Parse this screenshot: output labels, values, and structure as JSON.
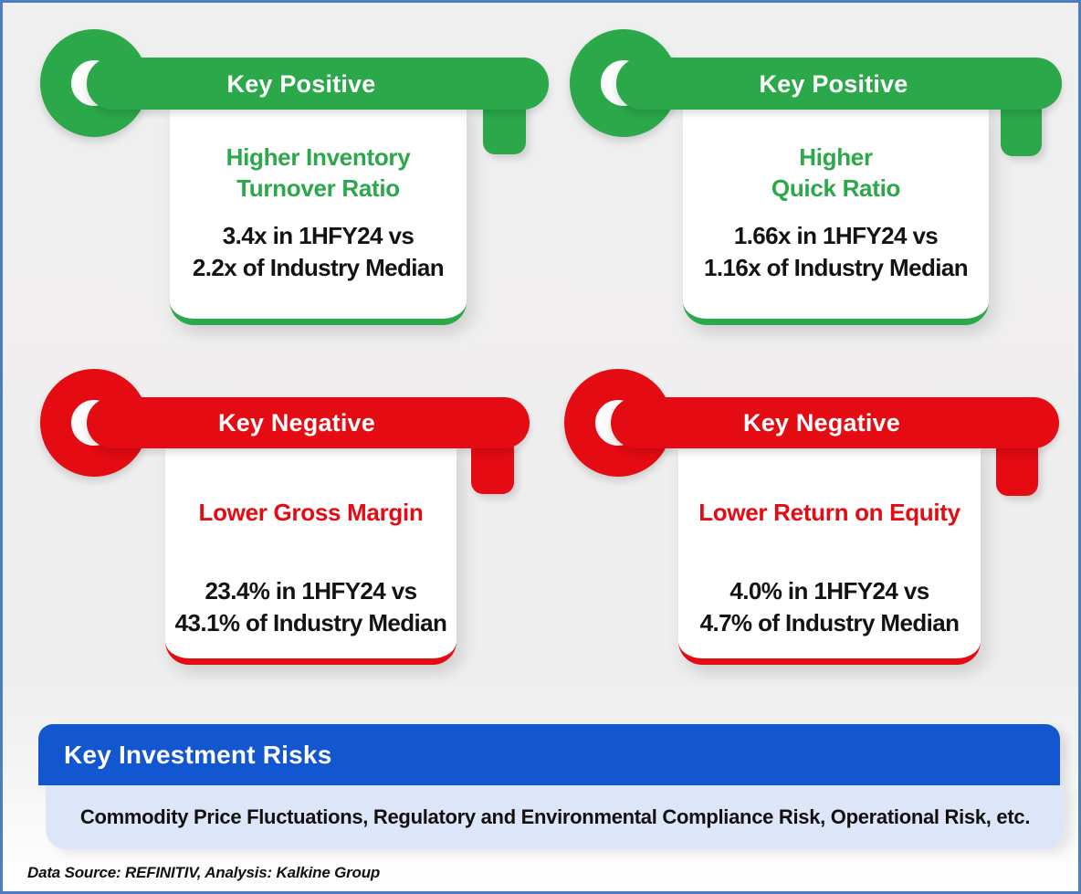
{
  "keys": [
    {
      "label": "Key Positive",
      "heading_line1": "Higher Inventory",
      "heading_line2": "Turnover Ratio",
      "stat_line1": "3.4x in 1HFY24 vs",
      "stat_line2": "2.2x of Industry Median"
    },
    {
      "label": "Key Positive",
      "heading_line1": "Higher",
      "heading_line2": "Quick Ratio",
      "stat_line1": "1.66x in 1HFY24 vs",
      "stat_line2": "1.16x of Industry Median"
    },
    {
      "label": "Key Negative",
      "heading_line1": "Lower Gross Margin",
      "heading_line2": "",
      "stat_line1": "23.4% in 1HFY24 vs",
      "stat_line2": "43.1% of Industry Median"
    },
    {
      "label": "Key Negative",
      "heading_line1": "Lower Return on Equity",
      "heading_line2": "",
      "stat_line1": "4.0% in 1HFY24 vs",
      "stat_line2": "4.7% of Industry Median"
    }
  ],
  "risk_section": {
    "title": "Key Investment Risks",
    "text": "Commodity Price Fluctuations, Regulatory and Environmental Compliance Risk, Operational Risk, etc."
  },
  "footer": {
    "source_note": "Data Source: REFINITIV, Analysis: Kalkine Group"
  },
  "colors": {
    "positive_green": "#2aa84a",
    "negative_red": "#e40b12",
    "banner_blue": "#1257d0",
    "risk_panel_bg": "#dde6f8",
    "page_border_blue": "#4d7cc2",
    "page_background": "#f0efef"
  }
}
